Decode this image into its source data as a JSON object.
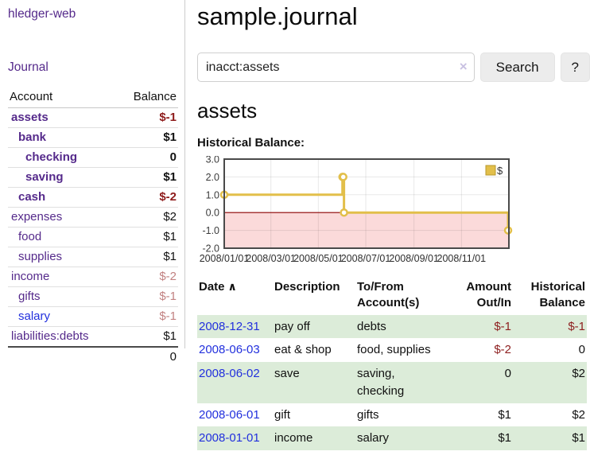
{
  "sidebar": {
    "brand": "hledger-web",
    "journal_link": "Journal",
    "accounts_table": {
      "header_account": "Account",
      "header_balance": "Balance",
      "rows": [
        {
          "name": "assets",
          "level": 0,
          "bold": true,
          "balance": "$-1",
          "balance_style": "neg",
          "link_color": "purple"
        },
        {
          "name": "bank",
          "level": 1,
          "bold": true,
          "balance": "$1",
          "balance_style": "normal",
          "link_color": "purple"
        },
        {
          "name": "checking",
          "level": 2,
          "bold": true,
          "balance": "0",
          "balance_style": "normal",
          "link_color": "purple"
        },
        {
          "name": "saving",
          "level": 2,
          "bold": true,
          "balance": "$1",
          "balance_style": "normal",
          "link_color": "purple"
        },
        {
          "name": "cash",
          "level": 1,
          "bold": true,
          "balance": "$-2",
          "balance_style": "neg",
          "link_color": "purple"
        },
        {
          "name": "expenses",
          "level": 0,
          "bold": false,
          "balance": "$2",
          "balance_style": "normal",
          "link_color": "purple"
        },
        {
          "name": "food",
          "level": 1,
          "bold": false,
          "balance": "$1",
          "balance_style": "normal",
          "link_color": "purple"
        },
        {
          "name": "supplies",
          "level": 1,
          "bold": false,
          "balance": "$1",
          "balance_style": "normal",
          "link_color": "purple"
        },
        {
          "name": "income",
          "level": 0,
          "bold": false,
          "balance": "$-2",
          "balance_style": "faded",
          "link_color": "purple"
        },
        {
          "name": "gifts",
          "level": 1,
          "bold": false,
          "balance": "$-1",
          "balance_style": "faded",
          "link_color": "purple"
        },
        {
          "name": "salary",
          "level": 1,
          "bold": false,
          "balance": "$-1",
          "balance_style": "faded",
          "link_color": "blue"
        },
        {
          "name": "liabilities:debts",
          "level": 0,
          "bold": false,
          "balance": "$1",
          "balance_style": "normal",
          "link_color": "purple"
        }
      ],
      "total": "0"
    }
  },
  "header": {
    "title": "sample.journal"
  },
  "search": {
    "query": "inacct:assets",
    "clear_icon": "×",
    "search_button": "Search",
    "help_button": "?"
  },
  "account_page": {
    "heading": "assets",
    "chart_label": "Historical Balance:"
  },
  "chart_data": {
    "type": "line",
    "step": true,
    "title": "Historical Balance",
    "series": [
      {
        "name": "$",
        "color": "#e2bf4a",
        "points": [
          [
            "2008-01-01",
            1
          ],
          [
            "2008-06-01",
            2
          ],
          [
            "2008-06-02",
            2
          ],
          [
            "2008-06-03",
            0
          ],
          [
            "2008-12-31",
            -1
          ]
        ]
      }
    ],
    "x_range": [
      "2008-01-01",
      "2009-01-01"
    ],
    "x_ticks": [
      "2008/01/01",
      "2008/03/01",
      "2008/05/01",
      "2008/07/01",
      "2008/09/01",
      "2008/11/01"
    ],
    "y_ticks": [
      3.0,
      2.0,
      1.0,
      0.0,
      -1.0,
      -2.0
    ],
    "ylim": [
      -2,
      3
    ],
    "grid": true,
    "negative_region_color": "#fbdada",
    "zero_line_color": "#8b0000",
    "border_color": "#4a4a4a",
    "legend": {
      "label": "$",
      "position": "top-right"
    }
  },
  "transactions": {
    "columns": {
      "date": "Date",
      "sort_indicator": "∧",
      "description": "Description",
      "accounts": "To/From Account(s)",
      "amount": "Amount Out/In",
      "balance": "Historical Balance"
    },
    "rows": [
      {
        "date": "2008-12-31",
        "description": "pay off",
        "accounts": "debts",
        "amount": "$-1",
        "amount_neg": true,
        "balance": "$-1",
        "balance_neg": true,
        "striped": true
      },
      {
        "date": "2008-06-03",
        "description": "eat & shop",
        "accounts": "food, supplies",
        "amount": "$-2",
        "amount_neg": true,
        "balance": "0",
        "balance_neg": false,
        "striped": false
      },
      {
        "date": "2008-06-02",
        "description": "save",
        "accounts": "saving, checking",
        "amount": "0",
        "amount_neg": false,
        "balance": "$2",
        "balance_neg": false,
        "striped": true
      },
      {
        "date": "2008-06-01",
        "description": "gift",
        "accounts": "gifts",
        "amount": "$1",
        "amount_neg": false,
        "balance": "$2",
        "balance_neg": false,
        "striped": false
      },
      {
        "date": "2008-01-01",
        "description": "income",
        "accounts": "salary",
        "amount": "$1",
        "amount_neg": false,
        "balance": "$1",
        "balance_neg": false,
        "striped": true
      }
    ]
  }
}
